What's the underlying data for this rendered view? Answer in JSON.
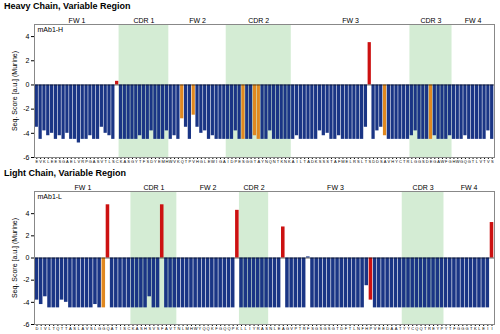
{
  "chart_data": [
    {
      "type": "bar",
      "title": "Heavy Chain, Variable Region",
      "annotation": "mAb1-H",
      "ylabel": "Seq. Score [a.u.] (Murine)",
      "categories": [
        "E",
        "V",
        "K",
        "L",
        "E",
        "E",
        "S",
        "G",
        "A",
        "E",
        "L",
        "V",
        "R",
        "P",
        "G",
        "A",
        "S",
        "V",
        "T",
        "L",
        "S",
        "C",
        "K",
        "A",
        "S",
        "G",
        "Y",
        "T",
        "F",
        "S",
        "D",
        "Y",
        "E",
        "M",
        "H",
        "W",
        "V",
        "K",
        "Q",
        "T",
        "P",
        "V",
        "H",
        "G",
        "L",
        "E",
        "W",
        "I",
        "G",
        "A",
        "I",
        "D",
        "P",
        "E",
        "S",
        "G",
        "G",
        "T",
        "A",
        "Y",
        "N",
        "Q",
        "N",
        "T",
        "K",
        "N",
        "K",
        "A",
        "I",
        "L",
        "T",
        "A",
        "D",
        "K",
        "S",
        "S",
        "S",
        "T",
        "A",
        "F",
        "M",
        "E",
        "L",
        "R",
        "S",
        "L",
        "T",
        "S",
        "D",
        "D",
        "S",
        "A",
        "V",
        "H",
        "Y",
        "C",
        "T",
        "R",
        "L",
        "G",
        "G",
        "S",
        "D",
        "E",
        "G",
        "A",
        "W",
        "F",
        "G",
        "H",
        "W",
        "G",
        "Q",
        "G",
        "T",
        "L",
        "V",
        "T",
        "V",
        "S"
      ],
      "values": [
        -3.5,
        -4.5,
        -3.8,
        -4.2,
        -4.0,
        -4.5,
        -4.2,
        -4.5,
        -4.0,
        -4.5,
        -4.5,
        -4.8,
        -4.5,
        -4.5,
        -4.2,
        -4.5,
        -4.5,
        -3.5,
        -4.0,
        -4.2,
        -4.5,
        0.3,
        -4.5,
        -4.5,
        -4.5,
        -4.5,
        -4.5,
        -4.2,
        -4.5,
        -4.5,
        -3.8,
        -4.5,
        -4.5,
        -4.5,
        -3.8,
        -4.5,
        -4.2,
        -4.5,
        -2.8,
        -3.5,
        -4.5,
        -2.5,
        -3.5,
        -4.0,
        -3.8,
        -4.5,
        -4.2,
        -4.5,
        -4.5,
        -4.5,
        -4.5,
        -4.5,
        -3.8,
        -4.5,
        -4.5,
        -4.5,
        -4.5,
        -4.2,
        -4.5,
        -4.5,
        -4.5,
        -3.8,
        -4.5,
        -4.5,
        -4.5,
        -4.5,
        -4.5,
        -4.5,
        -4.2,
        -4.5,
        -4.5,
        -4.5,
        -4.5,
        -4.5,
        -3.8,
        -4.2,
        -4.0,
        -4.5,
        -4.5,
        -4.2,
        -4.5,
        -4.5,
        -4.5,
        -4.5,
        -4.5,
        -4.5,
        -3.5,
        3.5,
        -4.5,
        -3.8,
        -3.5,
        -4.2,
        -4.5,
        -4.5,
        -4.5,
        -4.5,
        -4.5,
        -4.5,
        -4.2,
        -3.8,
        -4.5,
        -4.5,
        -4.5,
        -4.5,
        -4.2,
        -4.5,
        -4.5,
        -4.5,
        -4.2,
        -4.5,
        -4.5,
        -4.5,
        -4.2,
        -4.5,
        -4.5,
        -4.5,
        -4.5,
        -4.5,
        -3.8,
        -4.5
      ],
      "colors": [
        "#1a3585",
        "#1a3585",
        "#1a3585",
        "#1a3585",
        "#1a3585",
        "#1a3585",
        "#1a3585",
        "#1a3585",
        "#1a3585",
        "#1a3585",
        "#1a3585",
        "#1a3585",
        "#1a3585",
        "#1a3585",
        "#1a3585",
        "#1a3585",
        "#1a3585",
        "#1a3585",
        "#1a3585",
        "#1a3585",
        "#1a3585",
        "#cc1111",
        "#1a3585",
        "#1a3585",
        "#1a3585",
        "#1a3585",
        "#1a3585",
        "#1a3585",
        "#1a3585",
        "#1a3585",
        "#1a3585",
        "#1a3585",
        "#1a3585",
        "#1a3585",
        "#1a3585",
        "#1a3585",
        "#1a3585",
        "#1a3585",
        "#e08820",
        "#1a3585",
        "#1a3585",
        "#e08820",
        "#1a3585",
        "#1a3585",
        "#1a3585",
        "#1a3585",
        "#1a3585",
        "#1a3585",
        "#1a3585",
        "#1a3585",
        "#1a3585",
        "#1a3585",
        "#1a3585",
        "#1a3585",
        "#e08820",
        "#1a3585",
        "#1a3585",
        "#e08820",
        "#e08820",
        "#1a3585",
        "#1a3585",
        "#1a3585",
        "#1a3585",
        "#1a3585",
        "#1a3585",
        "#1a3585",
        "#1a3585",
        "#1a3585",
        "#1a3585",
        "#1a3585",
        "#1a3585",
        "#1a3585",
        "#1a3585",
        "#1a3585",
        "#1a3585",
        "#1a3585",
        "#1a3585",
        "#1a3585",
        "#1a3585",
        "#1a3585",
        "#1a3585",
        "#1a3585",
        "#1a3585",
        "#1a3585",
        "#1a3585",
        "#1a3585",
        "#1a3585",
        "#cc1111",
        "#1a3585",
        "#1a3585",
        "#1a3585",
        "#e08820",
        "#1a3585",
        "#1a3585",
        "#1a3585",
        "#1a3585",
        "#1a3585",
        "#1a3585",
        "#1a3585",
        "#1a3585",
        "#1a3585",
        "#1a3585",
        "#1a3585",
        "#e08820",
        "#1a3585",
        "#1a3585",
        "#1a3585",
        "#1a3585",
        "#1a3585",
        "#1a3585",
        "#1a3585",
        "#1a3585",
        "#1a3585",
        "#1a3585",
        "#1a3585",
        "#1a3585",
        "#1a3585",
        "#1a3585",
        "#1a3585",
        "#1a3585"
      ],
      "regions": [
        {
          "name": "FW 1",
          "start": 0,
          "end": 22,
          "shaded": false
        },
        {
          "name": "CDR 1",
          "start": 22,
          "end": 35,
          "shaded": true
        },
        {
          "name": "FW 2",
          "start": 35,
          "end": 50,
          "shaded": false
        },
        {
          "name": "CDR 2",
          "start": 50,
          "end": 67,
          "shaded": true
        },
        {
          "name": "FW 3",
          "start": 67,
          "end": 98,
          "shaded": false
        },
        {
          "name": "CDR 3",
          "start": 98,
          "end": 109,
          "shaded": true
        },
        {
          "name": "FW 4",
          "start": 109,
          "end": 120,
          "shaded": false
        }
      ],
      "region_color": "#d4ecd4",
      "ylim": [
        -6,
        5
      ],
      "yticks": [
        -6,
        -4,
        -2,
        0,
        2,
        4
      ],
      "grid": false
    },
    {
      "type": "bar",
      "title": "Light Chain, Variable Region",
      "annotation": "mAb1-L",
      "ylabel": "Seq. Score [a.u.] (Murine)",
      "categories": [
        "D",
        "I",
        "V",
        "L",
        "T",
        "Q",
        "T",
        "T",
        "A",
        "S",
        "L",
        "A",
        "V",
        "S",
        "L",
        "G",
        "G",
        "Q",
        "A",
        "T",
        "I",
        "S",
        "C",
        "K",
        "A",
        "S",
        "H",
        "S",
        "V",
        "S",
        "F",
        "A",
        "V",
        "T",
        "N",
        "L",
        "M",
        "H",
        "W",
        "Y",
        "Q",
        "Q",
        "K",
        "F",
        "G",
        "Q",
        "Q",
        "P",
        "K",
        "L",
        "L",
        "I",
        "Y",
        "R",
        "A",
        "S",
        "N",
        "L",
        "E",
        "A",
        "G",
        "V",
        "P",
        "T",
        "R",
        "F",
        "S",
        "G",
        "S",
        "G",
        "S",
        "G",
        "T",
        "D",
        "F",
        "T",
        "L",
        "N",
        "F",
        "H",
        "P",
        "V",
        "E",
        "E",
        "D",
        "A",
        "A",
        "T",
        "Y",
        "Y",
        "C",
        "Q",
        "Q",
        "T",
        "R",
        "E",
        "Y",
        "P",
        "Y",
        "T",
        "F",
        "G",
        "G",
        "G",
        "T",
        "K",
        "L",
        "E",
        "I",
        "I"
      ],
      "values": [
        -3.8,
        -4.2,
        -3.5,
        -4.5,
        -4.5,
        -4.5,
        -3.8,
        -4.0,
        -4.5,
        -4.5,
        -4.5,
        -4.5,
        -4.5,
        -4.5,
        -4.2,
        -4.5,
        -4.5,
        4.8,
        -4.5,
        -4.5,
        -4.5,
        -4.5,
        -4.5,
        -4.5,
        -4.5,
        -4.5,
        -4.5,
        -3.5,
        -4.5,
        -4.5,
        4.8,
        -4.5,
        -4.5,
        -4.5,
        -4.5,
        -4.5,
        -4.5,
        -4.5,
        -4.5,
        -4.5,
        -4.5,
        -4.5,
        -4.5,
        -4.5,
        -4.5,
        -4.5,
        -4.5,
        -4.5,
        4.3,
        -4.5,
        -4.5,
        -4.5,
        -4.5,
        -4.5,
        -4.5,
        -4.5,
        -4.5,
        -4.5,
        -4.5,
        2.8,
        -4.5,
        -4.5,
        -4.5,
        -4.5,
        -4.5,
        0.1,
        -4.5,
        -4.5,
        -4.5,
        -4.5,
        -4.5,
        -4.5,
        -4.5,
        -4.5,
        -4.5,
        -4.5,
        -4.5,
        -4.5,
        -4.5,
        -2.5,
        -3.8,
        -4.5,
        -4.5,
        -4.5,
        -4.5,
        -4.5,
        -4.5,
        -4.5,
        -4.5,
        -4.5,
        -4.5,
        -4.5,
        -4.5,
        -4.5,
        -4.5,
        -4.5,
        -4.5,
        -4.5,
        -4.5,
        -4.5,
        -4.5,
        -4.5,
        -4.5,
        -4.5,
        -4.5,
        -4.5,
        -4.5,
        -4.5,
        -4.5,
        3.2
      ],
      "colors": [
        "#1a3585",
        "#1a3585",
        "#1a3585",
        "#1a3585",
        "#1a3585",
        "#1a3585",
        "#1a3585",
        "#1a3585",
        "#1a3585",
        "#1a3585",
        "#1a3585",
        "#1a3585",
        "#1a3585",
        "#1a3585",
        "#1a3585",
        "#1a3585",
        "#e08820",
        "#cc1111",
        "#1a3585",
        "#1a3585",
        "#1a3585",
        "#1a3585",
        "#1a3585",
        "#1a3585",
        "#1a3585",
        "#1a3585",
        "#1a3585",
        "#1a3585",
        "#1a3585",
        "#1a3585",
        "#cc1111",
        "#1a3585",
        "#1a3585",
        "#1a3585",
        "#1a3585",
        "#1a3585",
        "#1a3585",
        "#1a3585",
        "#1a3585",
        "#1a3585",
        "#1a3585",
        "#1a3585",
        "#1a3585",
        "#1a3585",
        "#1a3585",
        "#1a3585",
        "#1a3585",
        "#1a3585",
        "#cc1111",
        "#1a3585",
        "#1a3585",
        "#1a3585",
        "#1a3585",
        "#1a3585",
        "#1a3585",
        "#1a3585",
        "#1a3585",
        "#1a3585",
        "#1a3585",
        "#cc1111",
        "#1a3585",
        "#1a3585",
        "#1a3585",
        "#1a3585",
        "#1a3585",
        "#1a3585",
        "#1a3585",
        "#1a3585",
        "#1a3585",
        "#1a3585",
        "#1a3585",
        "#1a3585",
        "#1a3585",
        "#1a3585",
        "#1a3585",
        "#1a3585",
        "#1a3585",
        "#1a3585",
        "#1a3585",
        "#1a3585",
        "#cc1111",
        "#1a3585",
        "#1a3585",
        "#1a3585",
        "#1a3585",
        "#1a3585",
        "#1a3585",
        "#1a3585",
        "#1a3585",
        "#1a3585",
        "#1a3585",
        "#1a3585",
        "#1a3585",
        "#1a3585",
        "#1a3585",
        "#1a3585",
        "#1a3585",
        "#1a3585",
        "#1a3585",
        "#1a3585",
        "#1a3585",
        "#1a3585",
        "#1a3585",
        "#1a3585",
        "#1a3585",
        "#1a3585",
        "#1a3585",
        "#1a3585",
        "#1a3585",
        "#cc1111"
      ],
      "regions": [
        {
          "name": "FW 1",
          "start": 0,
          "end": 23,
          "shaded": false
        },
        {
          "name": "CDR 1",
          "start": 23,
          "end": 34,
          "shaded": true
        },
        {
          "name": "FW 2",
          "start": 34,
          "end": 49,
          "shaded": false
        },
        {
          "name": "CDR 2",
          "start": 49,
          "end": 56,
          "shaded": true
        },
        {
          "name": "FW 3",
          "start": 56,
          "end": 88,
          "shaded": false
        },
        {
          "name": "CDR 3",
          "start": 88,
          "end": 98,
          "shaded": true
        },
        {
          "name": "FW 4",
          "start": 98,
          "end": 110,
          "shaded": false
        }
      ],
      "region_color": "#d4ecd4",
      "ylim": [
        -6,
        6
      ],
      "yticks": [
        -6,
        -4,
        -2,
        0,
        2,
        4
      ],
      "grid": false
    }
  ]
}
